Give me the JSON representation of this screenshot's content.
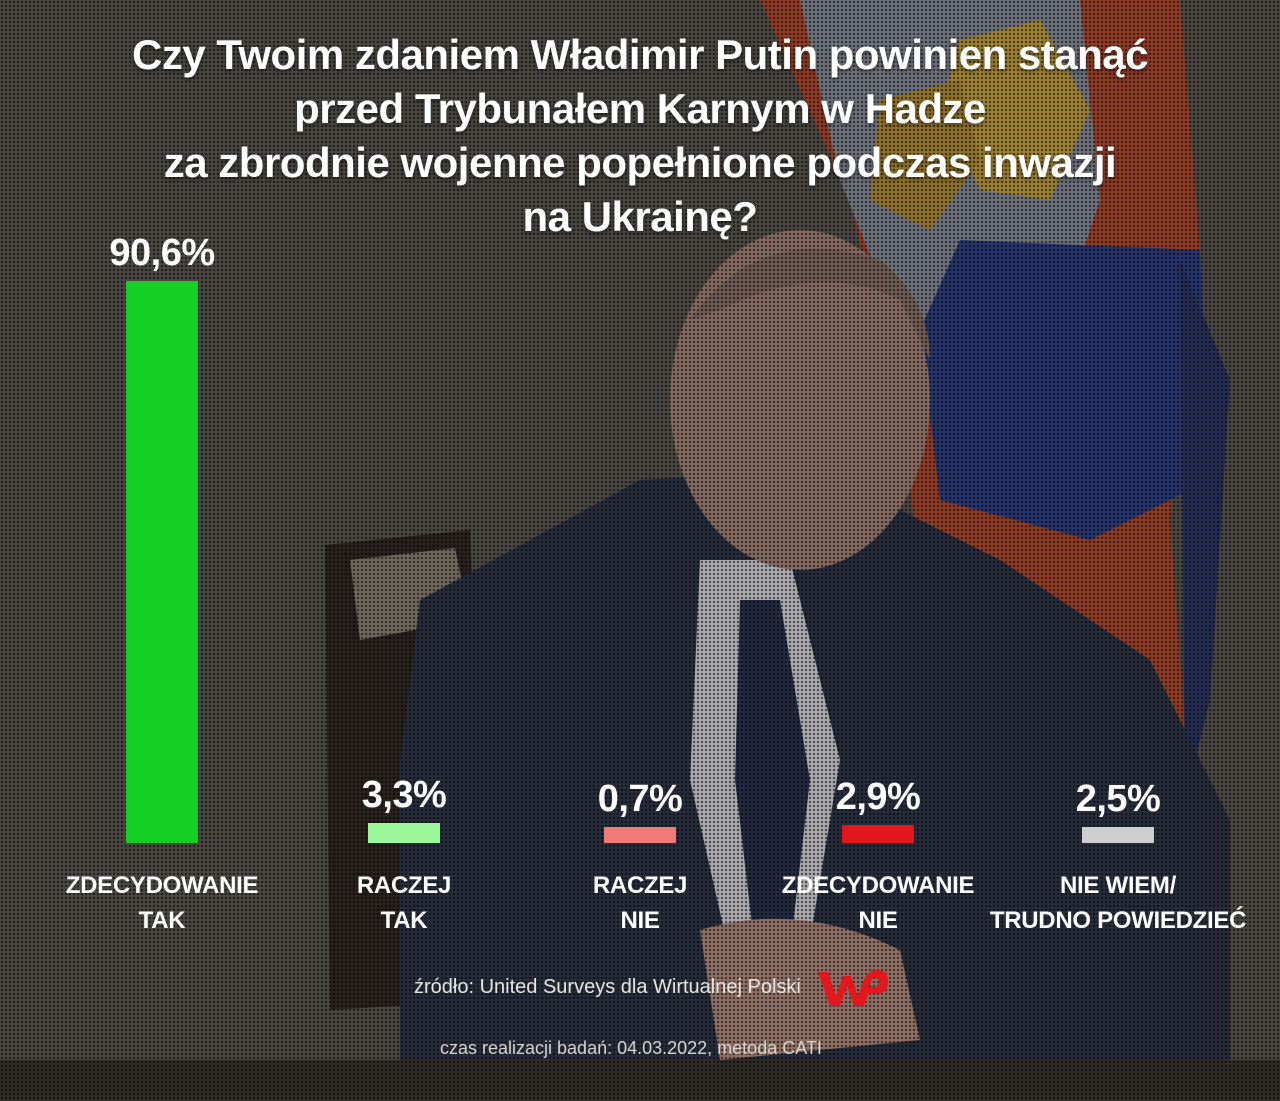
{
  "title_lines": [
    "Czy Twoim zdaniem Władimir Putin powinien stanąć",
    "przed Trybunałem Karnym w Hadze",
    "za zbrodnie wojenne popełnione podczas inwazji",
    "na Ukrainę?"
  ],
  "chart_data": {
    "type": "bar",
    "title": "Czy Twoim zdaniem Władimir Putin powinien stanąć przed Trybunałem Karnym w Hadze za zbrodnie wojenne popełnione podczas inwazji na Ukrainę?",
    "categories": [
      "ZDECYDOWANIE TAK",
      "RACZEJ TAK",
      "RACZEJ NIE",
      "ZDECYDOWANIE NIE",
      "NIE WIEM/ TRUDNO POWIEDZIEĆ"
    ],
    "values": [
      90.6,
      3.3,
      0.7,
      2.9,
      2.5
    ],
    "value_labels": [
      "90,6%",
      "3,3%",
      "0,7%",
      "2,9%",
      "2,5%"
    ],
    "category_label_lines": [
      [
        "ZDECYDOWANIE",
        "TAK"
      ],
      [
        "RACZEJ",
        "TAK"
      ],
      [
        "RACZEJ",
        "NIE"
      ],
      [
        "ZDECYDOWANIE",
        "NIE"
      ],
      [
        "NIE WIEM/",
        "TRUDNO POWIEDZIEĆ"
      ]
    ],
    "colors": [
      "#15cf23",
      "#9cf79a",
      "#f07a78",
      "#e3171c",
      "#cfcfcf"
    ],
    "ylim": [
      0,
      90.6
    ],
    "grid": false,
    "xlabel": "",
    "ylabel": ""
  },
  "footer": {
    "source": "źródło: United Surveys dla Wirtualnej Polski",
    "logo_name": "wp-logo",
    "meta": "czas realizacji badań: 04.03.2022, metoda CATI"
  }
}
